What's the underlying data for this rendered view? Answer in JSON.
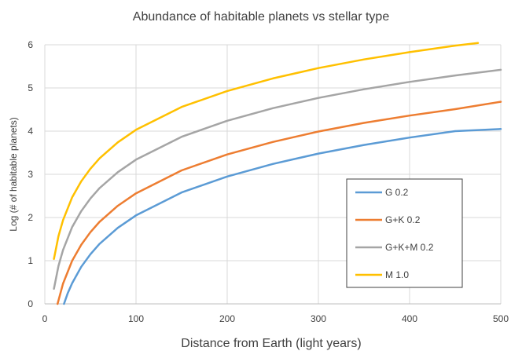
{
  "chart_data": {
    "type": "line",
    "title": "Abundance of habitable planets vs stellar type",
    "xlabel": "Distance from Earth (light years)",
    "ylabel": "Log (# of habitable planets)",
    "xlim": [
      0,
      500
    ],
    "ylim": [
      0,
      6
    ],
    "x_ticks": [
      "0",
      "100",
      "200",
      "300",
      "400",
      "500"
    ],
    "y_ticks": [
      "0",
      "1",
      "2",
      "3",
      "4",
      "5",
      "6"
    ],
    "grid": true,
    "legend_position": "right",
    "series": [
      {
        "name": "G 0.2",
        "color": "#5b9bd5",
        "points": [
          [
            21,
            0
          ],
          [
            25,
            0.24
          ],
          [
            30,
            0.48
          ],
          [
            40,
            0.86
          ],
          [
            50,
            1.15
          ],
          [
            60,
            1.39
          ],
          [
            80,
            1.76
          ],
          [
            100,
            2.05
          ],
          [
            150,
            2.58
          ],
          [
            200,
            2.95
          ],
          [
            250,
            3.24
          ],
          [
            300,
            3.48
          ],
          [
            350,
            3.68
          ],
          [
            400,
            3.85
          ],
          [
            450,
            4.0
          ],
          [
            500,
            4.05
          ]
        ]
      },
      {
        "name": "G+K 0.2",
        "color": "#ed7d31",
        "points": [
          [
            14,
            0
          ],
          [
            20,
            0.47
          ],
          [
            30,
            1.0
          ],
          [
            40,
            1.37
          ],
          [
            50,
            1.66
          ],
          [
            60,
            1.9
          ],
          [
            80,
            2.27
          ],
          [
            100,
            2.56
          ],
          [
            150,
            3.09
          ],
          [
            200,
            3.46
          ],
          [
            250,
            3.75
          ],
          [
            300,
            3.99
          ],
          [
            350,
            4.19
          ],
          [
            400,
            4.36
          ],
          [
            450,
            4.51
          ],
          [
            500,
            4.68
          ]
        ]
      },
      {
        "name": "G+K+M 0.2",
        "color": "#a5a5a5",
        "points": [
          [
            10,
            0.35
          ],
          [
            15,
            0.88
          ],
          [
            20,
            1.25
          ],
          [
            30,
            1.78
          ],
          [
            40,
            2.15
          ],
          [
            50,
            2.44
          ],
          [
            60,
            2.68
          ],
          [
            80,
            3.05
          ],
          [
            100,
            3.34
          ],
          [
            150,
            3.87
          ],
          [
            200,
            4.24
          ],
          [
            250,
            4.53
          ],
          [
            300,
            4.77
          ],
          [
            350,
            4.97
          ],
          [
            400,
            5.14
          ],
          [
            450,
            5.29
          ],
          [
            500,
            5.42
          ]
        ]
      },
      {
        "name": "M 1.0",
        "color": "#ffc000",
        "points": [
          [
            10,
            1.04
          ],
          [
            15,
            1.57
          ],
          [
            20,
            1.94
          ],
          [
            30,
            2.47
          ],
          [
            40,
            2.84
          ],
          [
            50,
            3.13
          ],
          [
            60,
            3.37
          ],
          [
            80,
            3.74
          ],
          [
            100,
            4.03
          ],
          [
            150,
            4.56
          ],
          [
            200,
            4.93
          ],
          [
            250,
            5.22
          ],
          [
            300,
            5.46
          ],
          [
            350,
            5.66
          ],
          [
            400,
            5.83
          ],
          [
            450,
            5.98
          ],
          [
            475,
            6.04
          ]
        ]
      }
    ]
  }
}
